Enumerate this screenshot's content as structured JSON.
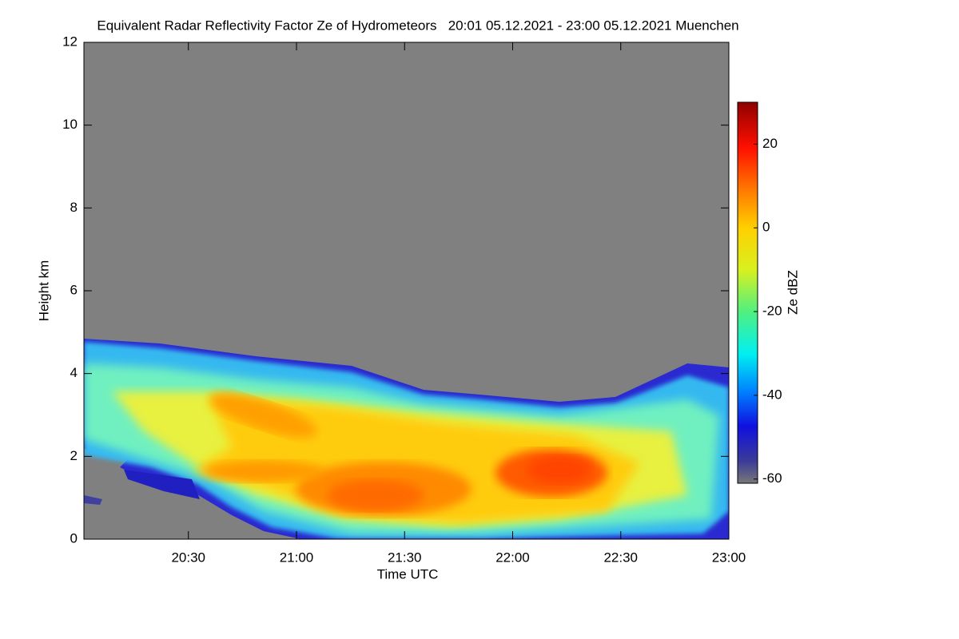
{
  "chart_data": {
    "type": "heatmap",
    "title": "Equivalent Radar Reflectivity Factor Ze of Hydrometeors   20:01 05.12.2021 - 23:00 05.12.2021 Muenchen",
    "x_label": "Time UTC",
    "y_label": "Height km",
    "xlim": [
      20.0167,
      23.0
    ],
    "xticks": [
      {
        "value": 20.5,
        "label": "20:30"
      },
      {
        "value": 21.0,
        "label": "21:00"
      },
      {
        "value": 21.5,
        "label": "21:30"
      },
      {
        "value": 22.0,
        "label": "22:00"
      },
      {
        "value": 22.5,
        "label": "22:30"
      },
      {
        "value": 23.0,
        "label": "23:00"
      }
    ],
    "ylim": [
      0,
      12
    ],
    "yticks": [
      0,
      2,
      4,
      6,
      8,
      10,
      12
    ],
    "colorbar": {
      "label": "Ze dBZ",
      "lim": [
        -61,
        30
      ],
      "ticks": [
        -60,
        -40,
        -20,
        0,
        20
      ]
    }
  }
}
